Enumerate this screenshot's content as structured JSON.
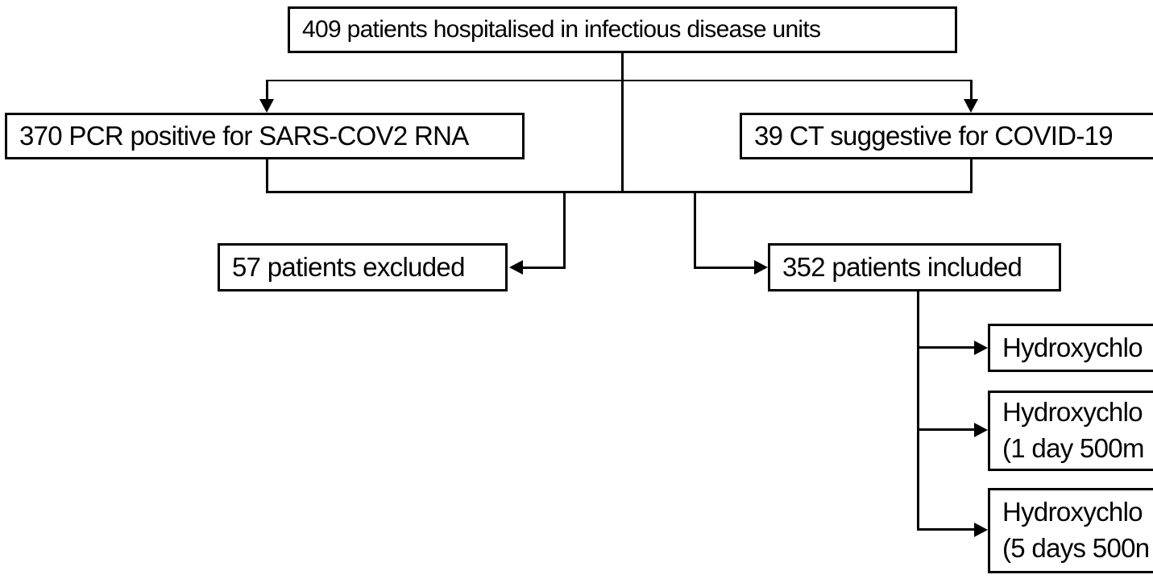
{
  "diagram": {
    "type": "patient-flow-chart",
    "colors": {
      "background": "#ffffff",
      "line": "#000000",
      "text": "#000000"
    },
    "boxes": {
      "title": "409 patients hospitalised in infectious disease units",
      "pcr": "370 PCR positive for SARS-COV2 RNA",
      "ct": "39 CT suggestive for COVID-19",
      "excluded": "57 patients excluded",
      "included": "352 patients included",
      "treatments": [
        {
          "line1": "Hydroxychlo",
          "line2": ""
        },
        {
          "line1": "Hydroxychlo",
          "line2": "(1 day 500m"
        },
        {
          "line1": "Hydroxychlo",
          "line2": "(5 days 500n"
        }
      ]
    },
    "counts": {
      "hospitalised": 409,
      "pcr_positive": 370,
      "ct_suggestive": 39,
      "excluded": 57,
      "included": 352
    }
  }
}
